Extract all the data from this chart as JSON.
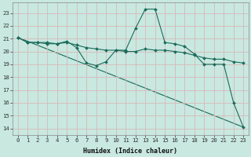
{
  "xlabel": "Humidex (Indice chaleur)",
  "bg_color": "#c8e8e0",
  "grid_color": "#d8b8b8",
  "line_color": "#1a6b5a",
  "xlim": [
    -0.5,
    23.5
  ],
  "ylim": [
    13.5,
    23.8
  ],
  "xticks": [
    0,
    1,
    2,
    3,
    4,
    5,
    6,
    7,
    8,
    9,
    10,
    11,
    12,
    13,
    14,
    15,
    16,
    17,
    18,
    19,
    20,
    21,
    22,
    23
  ],
  "yticks": [
    14,
    15,
    16,
    17,
    18,
    19,
    20,
    21,
    22,
    23
  ],
  "series1_x": [
    0,
    1,
    2,
    3,
    4,
    5,
    6,
    7,
    8,
    9,
    10,
    11,
    12,
    13,
    14,
    15,
    16,
    17,
    18,
    19,
    20,
    21,
    22,
    23
  ],
  "series1_y": [
    21.1,
    20.7,
    20.7,
    20.7,
    20.6,
    20.8,
    20.3,
    19.1,
    18.9,
    19.2,
    20.1,
    20.1,
    21.8,
    23.3,
    23.3,
    20.7,
    20.6,
    20.4,
    19.8,
    19.0,
    19.0,
    19.0,
    16.0,
    14.1
  ],
  "series2_x": [
    0,
    1,
    2,
    3,
    4,
    5,
    6,
    7,
    8,
    9,
    10,
    11,
    12,
    13,
    14,
    15,
    16,
    17,
    18,
    19,
    20,
    21,
    22,
    23
  ],
  "series2_y": [
    21.1,
    20.7,
    20.7,
    20.6,
    20.6,
    20.7,
    20.5,
    20.3,
    20.2,
    20.1,
    20.1,
    20.0,
    20.0,
    20.2,
    20.1,
    20.1,
    20.0,
    19.9,
    19.7,
    19.5,
    19.4,
    19.4,
    19.2,
    19.1
  ],
  "series3_x": [
    0,
    23
  ],
  "series3_y": [
    21.1,
    14.1
  ],
  "xlabel_fontsize": 6.0,
  "tick_fontsize": 5.2
}
